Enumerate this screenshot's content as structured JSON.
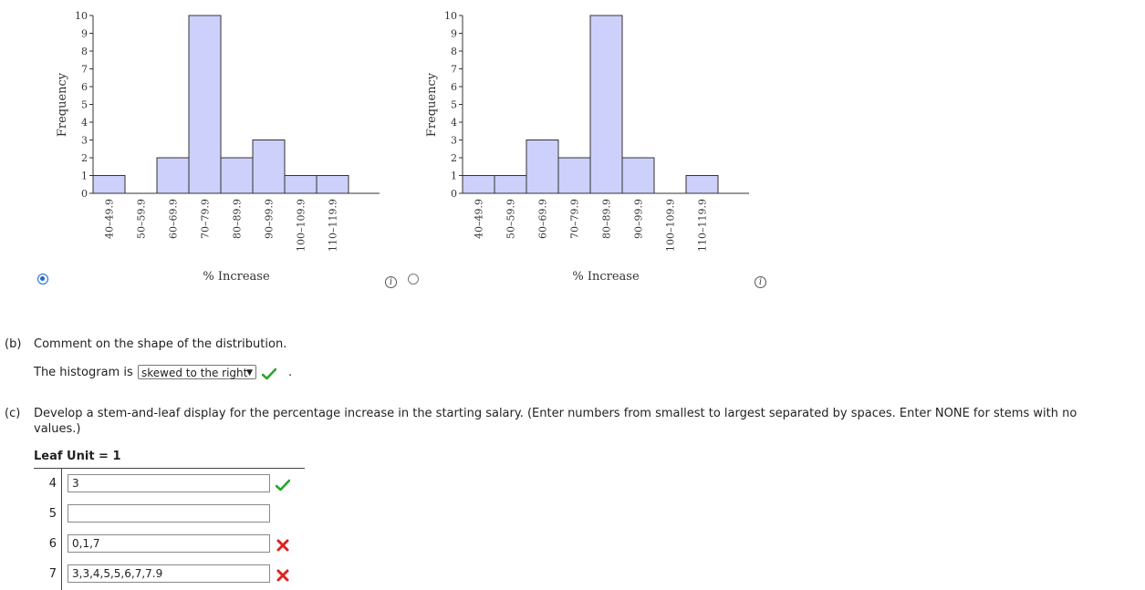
{
  "chart_data": [
    {
      "type": "bar",
      "categories": [
        "40–49.9",
        "50–59.9",
        "60–69.9",
        "70–79.9",
        "80–89.9",
        "90–99.9",
        "100–109.9",
        "110–119.9"
      ],
      "values": [
        1,
        0,
        2,
        10,
        2,
        3,
        1,
        1
      ],
      "xlabel": "% Increase",
      "ylabel": "Frequency",
      "ylim": [
        0,
        10
      ],
      "yticks": [
        "0",
        "1",
        "2",
        "3",
        "4",
        "5",
        "6",
        "7",
        "8",
        "9",
        "10"
      ]
    },
    {
      "type": "bar",
      "categories": [
        "40–49.9",
        "50–59.9",
        "60–69.9",
        "70–79.9",
        "80–89.9",
        "90–99.9",
        "100–109.9",
        "110–119.9"
      ],
      "values": [
        1,
        1,
        3,
        2,
        10,
        2,
        0,
        1
      ],
      "xlabel": "% Increase",
      "ylabel": "Frequency",
      "ylim": [
        0,
        10
      ],
      "yticks": [
        "0",
        "1",
        "2",
        "3",
        "4",
        "5",
        "6",
        "7",
        "8",
        "9",
        "10"
      ]
    }
  ],
  "colors": {
    "bar_fill": "#ccd0fa",
    "bar_stroke": "#333333",
    "radio": "#1a66d6",
    "check": "#2aa52a",
    "cross": "#e02020"
  },
  "info_glyph": "i",
  "part_b": {
    "label": "(b)",
    "question": "Comment on the shape of the distribution.",
    "sentence_prefix": "The histogram is",
    "selected": "skewed to the right",
    "sentence_suffix": "."
  },
  "part_c": {
    "label": "(c)",
    "question_line1": "Develop a stem-and-leaf display for the percentage increase in the starting salary. (Enter numbers from smallest to largest separated by spaces. Enter NONE for stems with no",
    "question_line2": "values.)",
    "leaf_unit": "Leaf Unit = 1",
    "rows": [
      {
        "stem": "4",
        "value": "3",
        "status": "correct"
      },
      {
        "stem": "5",
        "value": "",
        "status": ""
      },
      {
        "stem": "6",
        "value": "0,1,7",
        "status": "incorrect"
      },
      {
        "stem": "7",
        "value": "3,3,4,5,5,6,7,7.9",
        "status": "incorrect"
      }
    ]
  }
}
